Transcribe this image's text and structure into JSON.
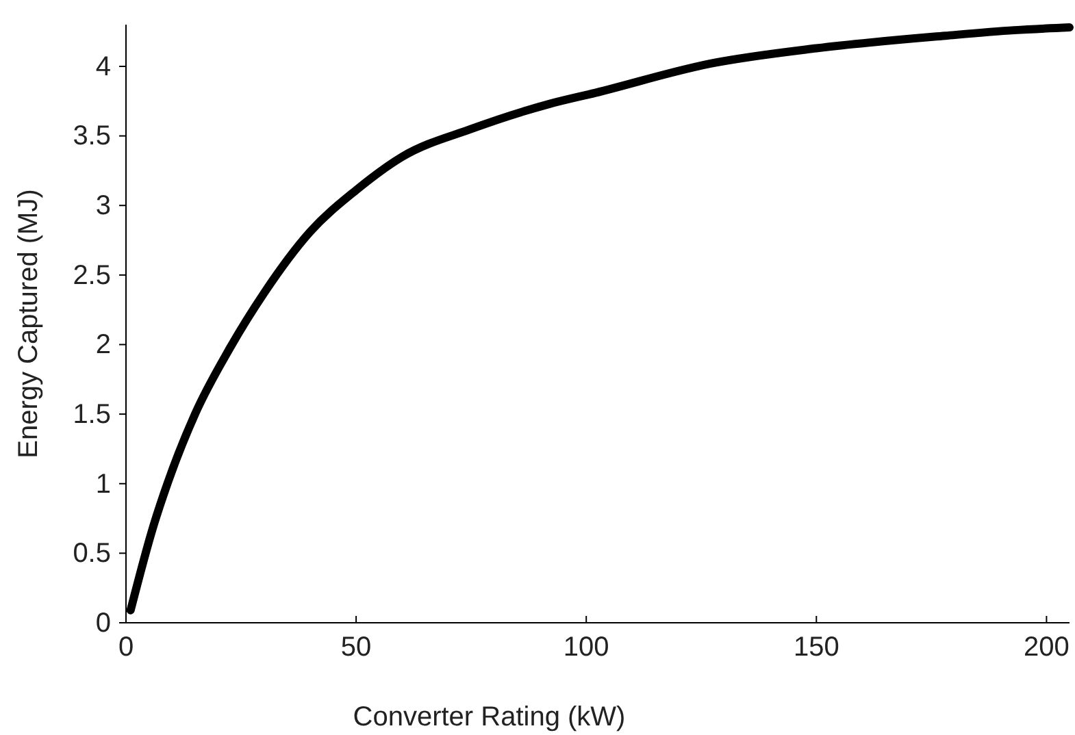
{
  "chart_data": {
    "type": "line",
    "xlabel": "Converter Rating (kW)",
    "ylabel": "Energy Captured (MJ)",
    "x": [
      1,
      6,
      9,
      15,
      22.5,
      30,
      40,
      50,
      60,
      75,
      92,
      102,
      127,
      150,
      178,
      193,
      205
    ],
    "series": [
      {
        "color": "#000000",
        "values": [
          0.09,
          0.7,
          1.0,
          1.5,
          1.97,
          2.37,
          2.81,
          3.11,
          3.35,
          3.55,
          3.73,
          3.81,
          4.02,
          4.13,
          4.22,
          4.26,
          4.28
        ]
      }
    ],
    "xlim": [
      0,
      205
    ],
    "xticks": [
      0,
      50,
      100,
      150,
      200
    ],
    "ylim": [
      0,
      4.3
    ],
    "yticks": [
      0,
      0.5,
      1,
      1.5,
      2,
      2.5,
      3,
      3.5,
      4
    ],
    "marker": "none",
    "line_style": "solid",
    "grid": false
  }
}
